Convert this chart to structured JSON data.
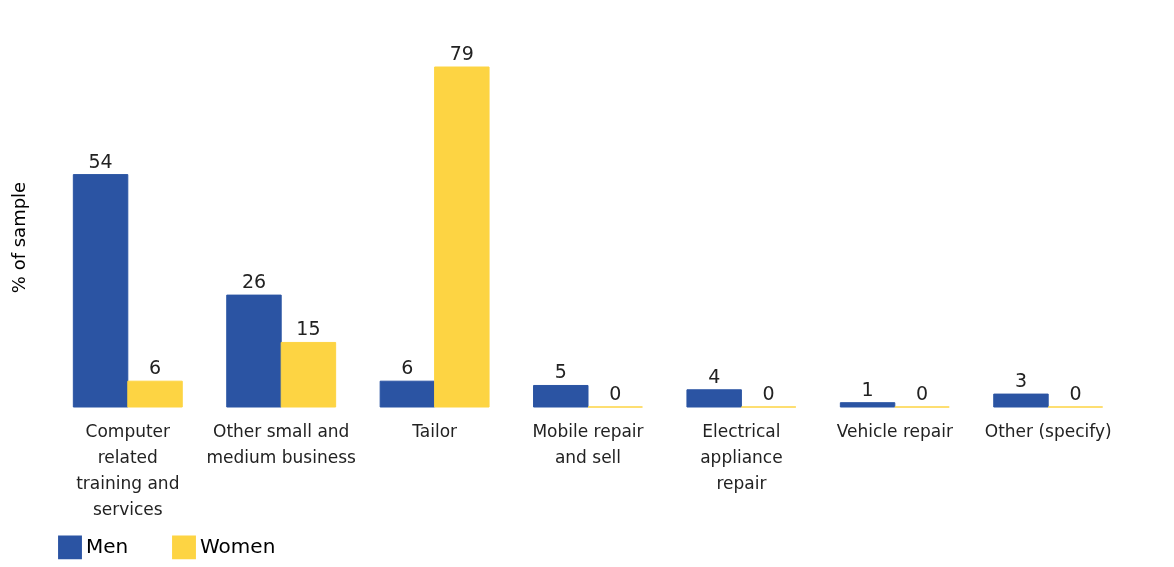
{
  "chart_data": {
    "type": "bar",
    "ylabel": "% of sample",
    "categories": [
      "Computer related training and services",
      "Other small and medium business",
      "Tailor",
      "Mobile repair and sell",
      "Electrical appliance repair",
      "Vehicle repair",
      "Other (specify)"
    ],
    "series": [
      {
        "name": "Men",
        "color": "#2b54a3",
        "values": [
          54,
          26,
          6,
          5,
          4,
          1,
          3
        ]
      },
      {
        "name": "Women",
        "color": "#fdd443",
        "values": [
          6,
          15,
          79,
          0,
          0,
          0,
          0
        ]
      }
    ],
    "data_labels": true,
    "grid": false,
    "legend": "bottom left"
  }
}
